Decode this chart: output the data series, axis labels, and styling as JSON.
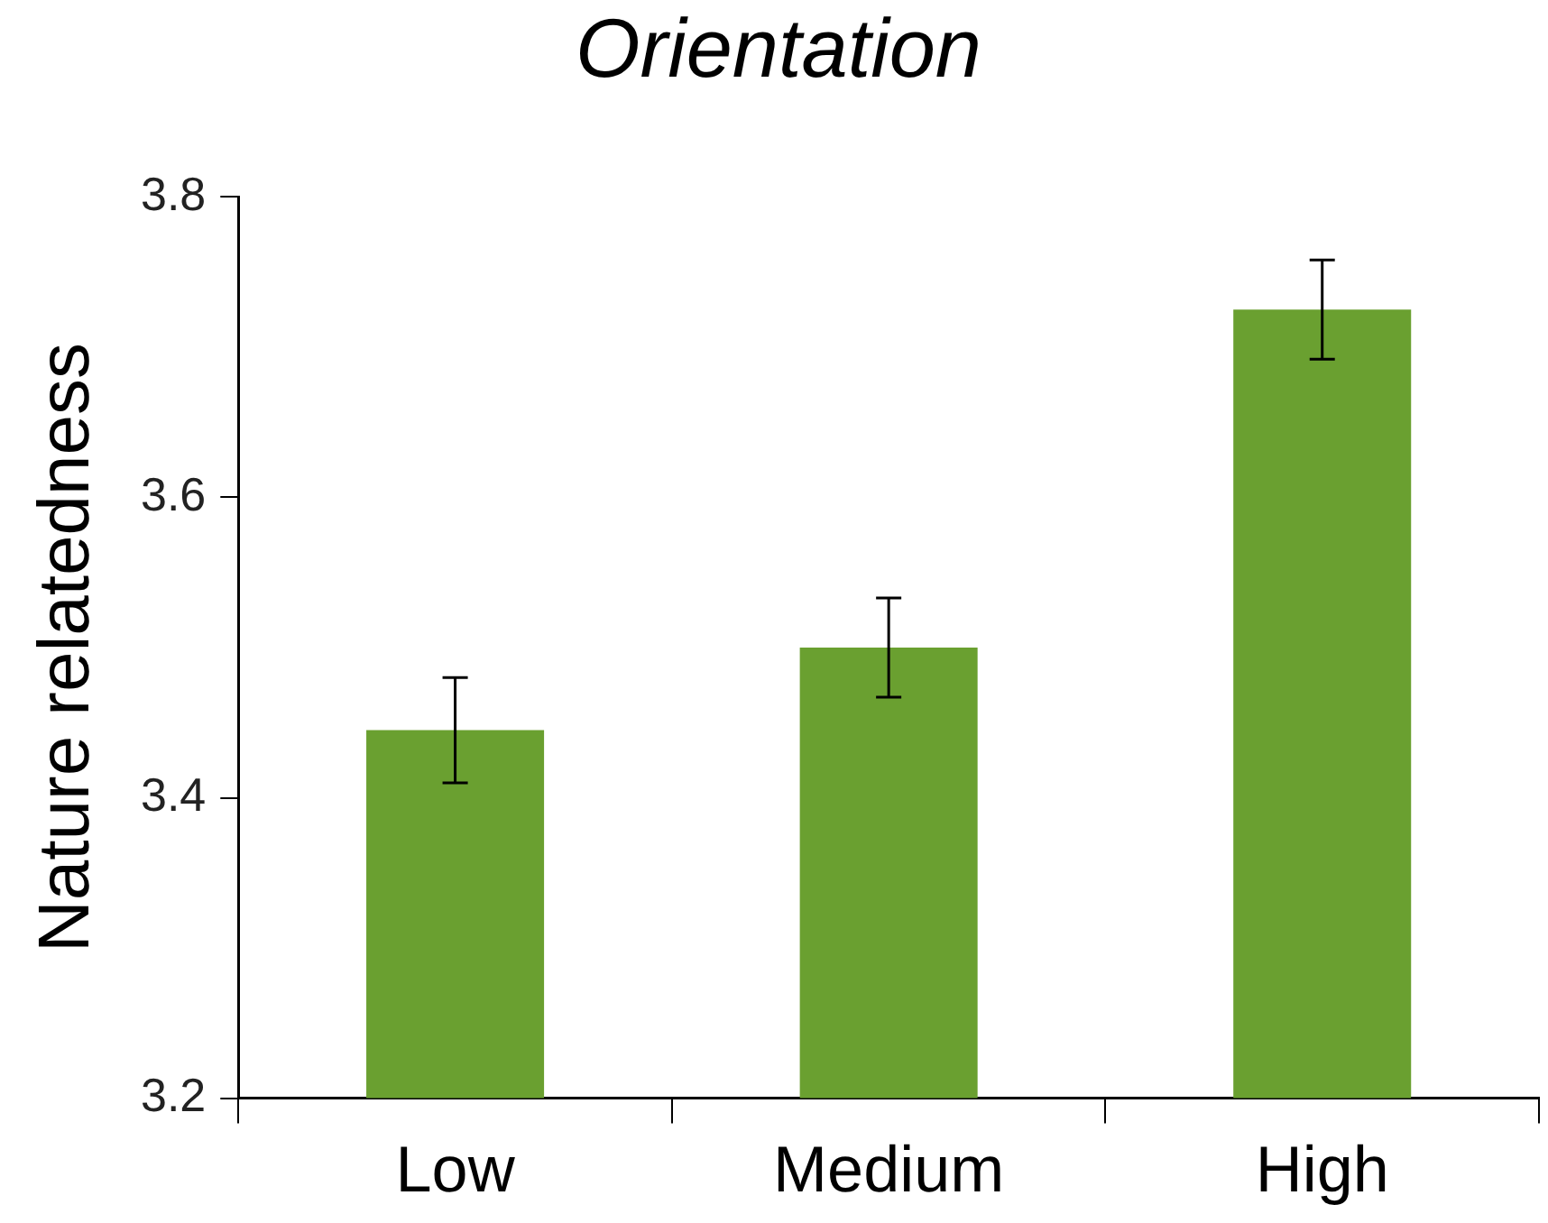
{
  "chart_data": {
    "type": "bar",
    "title": "Orientation",
    "ylabel": "Nature relatedness",
    "categories": [
      "Low",
      "Medium",
      "High"
    ],
    "values": [
      3.445,
      3.5,
      3.725
    ],
    "errors": [
      0.035,
      0.033,
      0.033
    ],
    "color": "#6aa030",
    "ylim": [
      3.2,
      3.8
    ],
    "yticks": [
      3.2,
      3.4,
      3.6,
      3.8
    ],
    "grid": false,
    "legend": false
  }
}
